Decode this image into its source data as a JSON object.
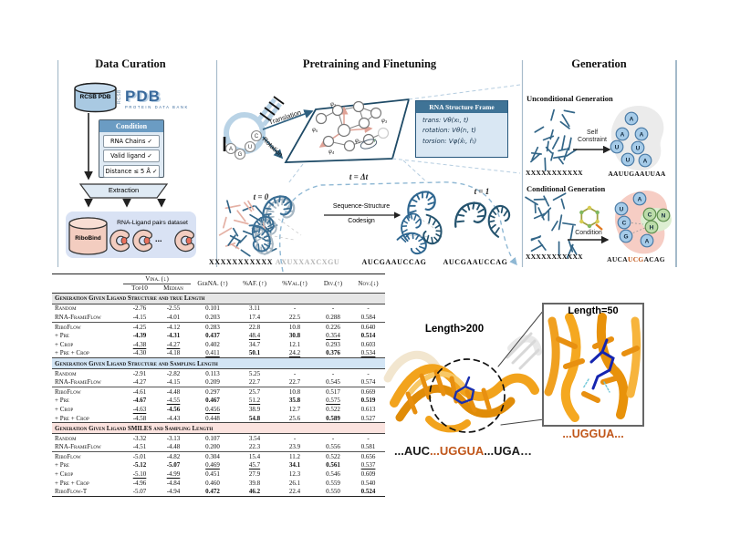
{
  "colors": {
    "accent_orange": "#c0561a",
    "steel_blue": "#2e6080",
    "panel_rule": "#a8bccb",
    "band_gray": "#e6e6e6",
    "band_blue": "#d3e5f5",
    "band_pink": "#fbe3df"
  },
  "panels": {
    "data_curation": {
      "title": "Data Curation",
      "db_label": "RCSB PDB",
      "pdb_logo": {
        "vertical": "RCSB",
        "main": "PDB",
        "sub": "PROTEIN DATA BANK"
      },
      "condition": {
        "header": "Condition",
        "items": [
          "RNA Chains ✓",
          "Valid ligand ✓",
          "Distance ≤ 5 Å ✓"
        ]
      },
      "extraction_label": "Extraction",
      "dataset_db_label": "RiboBind",
      "dataset_caption": "RNA-Ligand pairs dataset",
      "ellipsis": "..."
    },
    "pretraining": {
      "title": "Pretraining and Finetuning",
      "nucleotides": [
        "A",
        "G",
        "U",
        "C"
      ],
      "arrow_translation": "Translation",
      "arrow_rotation": "Rotation",
      "phi_labels": [
        "φ₂",
        "φ₅",
        "φ₃",
        "φ₄",
        "φ₁"
      ],
      "r_label": "r",
      "frame_box": {
        "header": "RNA Structure Frame",
        "lines": [
          "trans: Vθ(xₜ, t)",
          "rotation: Vθ(rₜ, t)",
          "torsion: Vφ(x̂ₜ, r̂ₜ)"
        ]
      },
      "t0_label": "t = 0",
      "tdt_label": "t = Δt",
      "t1_label": "t = 1",
      "codesign_line1": "Sequence-Structure",
      "codesign_line2": "Codesign",
      "seq_x": "XXXXXXXXXXX",
      "seq_noisy": "AXUXXAXCXGU",
      "seq_mid": "AUCGAAUCCAG",
      "seq_final": "AUCGAAUCCAG"
    },
    "generation": {
      "title": "Generation",
      "uncond_heading": "Unconditional Generation",
      "cond_heading": "Conditional Generation",
      "self_line1": "Self",
      "self_line2": "Constraint",
      "condition_label": "Condition",
      "uncond_input": "XXXXXXXXXXX",
      "uncond_output": "AAUUGAAUUAA",
      "cond_input": "XXXXXXXXXXX",
      "uncond_blob_letters": [
        "A",
        "A",
        "A",
        "U",
        "U",
        "U",
        "A"
      ],
      "cond_blob_letters": [
        {
          "l": "A",
          "g": false
        },
        {
          "l": "U",
          "g": false
        },
        {
          "l": "C",
          "g": true
        },
        {
          "l": "N",
          "g": true
        },
        {
          "l": "C",
          "g": false
        },
        {
          "l": "H",
          "g": true
        },
        {
          "l": "G",
          "g": false
        },
        {
          "l": "A",
          "g": false
        }
      ],
      "cond_output_parts": [
        {
          "t": "AUCA",
          "c": "#1a1a1a"
        },
        {
          "t": "UCG",
          "c": "#c0561a"
        },
        {
          "t": "ACAG",
          "c": "#1a1a1a"
        }
      ]
    }
  },
  "table": {
    "header": {
      "vina": "Vina. (↓)",
      "top10": "Top10",
      "median": "Median",
      "cols": [
        "GerNA. (↑)",
        "%AF. (↑)",
        "%Val.(↑)",
        "Div.(↑)",
        "Nov.(↓)"
      ]
    },
    "sections": [
      {
        "title": "Generation Given Ligand Structure and true Length",
        "bg": "#e6e6e6",
        "groups": [
          [
            {
              "name": "Random",
              "vals": [
                [
                  "-2.76",
                  ""
                ],
                [
                  "-2.55",
                  ""
                ],
                [
                  "0.101",
                  ""
                ],
                [
                  "3.11",
                  ""
                ],
                [
                  "-",
                  ""
                ],
                [
                  "-",
                  ""
                ],
                [
                  "-",
                  ""
                ]
              ]
            },
            {
              "name": "RNA-FrameFlow",
              "vals": [
                [
                  "-4.15",
                  ""
                ],
                [
                  "-4.01",
                  ""
                ],
                [
                  "0.203",
                  ""
                ],
                [
                  "17.4",
                  ""
                ],
                [
                  "22.5",
                  ""
                ],
                [
                  "0.288",
                  ""
                ],
                [
                  "0.584",
                  ""
                ]
              ]
            }
          ],
          [
            {
              "name": "RiboFlow",
              "vals": [
                [
                  "-4.25",
                  ""
                ],
                [
                  "-4.12",
                  ""
                ],
                [
                  "0.283",
                  ""
                ],
                [
                  "22.8",
                  ""
                ],
                [
                  "10.8",
                  ""
                ],
                [
                  "0.226",
                  ""
                ],
                [
                  "0.640",
                  ""
                ]
              ]
            },
            {
              "name": "+ Pre",
              "vals": [
                [
                  "-4.39",
                  "b"
                ],
                [
                  "-4.31",
                  "b"
                ],
                [
                  "0.437",
                  "b"
                ],
                [
                  "48.4",
                  "u"
                ],
                [
                  "30.8",
                  "b"
                ],
                [
                  "0.354",
                  "u"
                ],
                [
                  "0.514",
                  "b"
                ]
              ]
            },
            {
              "name": "+ Crop",
              "vals": [
                [
                  "-4.38",
                  "u"
                ],
                [
                  "-4.27",
                  "u"
                ],
                [
                  "0.402",
                  ""
                ],
                [
                  "34.7",
                  ""
                ],
                [
                  "12.1",
                  ""
                ],
                [
                  "0.293",
                  ""
                ],
                [
                  "0.603",
                  ""
                ]
              ]
            },
            {
              "name": "+ Pre + Crop",
              "vals": [
                [
                  "-4.30",
                  ""
                ],
                [
                  "-4.18",
                  ""
                ],
                [
                  "0.411",
                  "u"
                ],
                [
                  "50.1",
                  "b"
                ],
                [
                  "24.2",
                  "u"
                ],
                [
                  "0.376",
                  "b"
                ],
                [
                  "0.534",
                  "u"
                ]
              ]
            }
          ]
        ]
      },
      {
        "title": "Generation Given Ligand Structure and Sampling Length",
        "bg": "#d3e5f5",
        "groups": [
          [
            {
              "name": "Random",
              "vals": [
                [
                  "-2.91",
                  ""
                ],
                [
                  "-2.82",
                  ""
                ],
                [
                  "0.113",
                  ""
                ],
                [
                  "5.25",
                  ""
                ],
                [
                  "-",
                  ""
                ],
                [
                  "-",
                  ""
                ],
                [
                  "-",
                  ""
                ]
              ]
            },
            {
              "name": "RNA-FrameFlow",
              "vals": [
                [
                  "-4.27",
                  ""
                ],
                [
                  "-4.15",
                  ""
                ],
                [
                  "0.209",
                  ""
                ],
                [
                  "22.7",
                  ""
                ],
                [
                  "22.7",
                  ""
                ],
                [
                  "0.545",
                  ""
                ],
                [
                  "0.574",
                  ""
                ]
              ]
            }
          ],
          [
            {
              "name": "RiboFlow",
              "vals": [
                [
                  "-4.61",
                  ""
                ],
                [
                  "-4.48",
                  ""
                ],
                [
                  "0.297",
                  ""
                ],
                [
                  "25.7",
                  ""
                ],
                [
                  "10.8",
                  ""
                ],
                [
                  "0.517",
                  ""
                ],
                [
                  "0.669",
                  ""
                ]
              ]
            },
            {
              "name": "+ Pre",
              "vals": [
                [
                  "-4.67",
                  "b"
                ],
                [
                  "-4.55",
                  "u"
                ],
                [
                  "0.467",
                  "b"
                ],
                [
                  "51.2",
                  "u"
                ],
                [
                  "35.8",
                  "b"
                ],
                [
                  "0.575",
                  "u"
                ],
                [
                  "0.519",
                  "b"
                ]
              ]
            },
            {
              "name": "+ Crop",
              "vals": [
                [
                  "-4.63",
                  "u"
                ],
                [
                  "-4.56",
                  "b"
                ],
                [
                  "0.456",
                  "u"
                ],
                [
                  "38.9",
                  ""
                ],
                [
                  "12.7",
                  ""
                ],
                [
                  "0.522",
                  ""
                ],
                [
                  "0.613",
                  ""
                ]
              ]
            },
            {
              "name": "+ Pre + Crop",
              "vals": [
                [
                  "-4.58",
                  "u"
                ],
                [
                  "-4.43",
                  ""
                ],
                [
                  "0.448",
                  ""
                ],
                [
                  "54.8",
                  "b"
                ],
                [
                  "25.6",
                  "u"
                ],
                [
                  "0.589",
                  "b"
                ],
                [
                  "0.527",
                  "u"
                ]
              ]
            }
          ]
        ]
      },
      {
        "title": "Generation Given Ligand SMILES and Sampling Length",
        "bg": "#fbe3df",
        "groups": [
          [
            {
              "name": "Random",
              "vals": [
                [
                  "-3.32",
                  ""
                ],
                [
                  "-3.13",
                  ""
                ],
                [
                  "0.107",
                  ""
                ],
                [
                  "3.54",
                  ""
                ],
                [
                  "-",
                  ""
                ],
                [
                  "-",
                  ""
                ],
                [
                  "-",
                  ""
                ]
              ]
            },
            {
              "name": "RNA-FrameFlow",
              "vals": [
                [
                  "-4.51",
                  ""
                ],
                [
                  "-4.48",
                  ""
                ],
                [
                  "0.200",
                  ""
                ],
                [
                  "22.3",
                  ""
                ],
                [
                  "23.9",
                  ""
                ],
                [
                  "0.556",
                  ""
                ],
                [
                  "0.581",
                  ""
                ]
              ]
            }
          ],
          [
            {
              "name": "RiboFlow",
              "vals": [
                [
                  "-5.01",
                  ""
                ],
                [
                  "-4.82",
                  ""
                ],
                [
                  "0.304",
                  ""
                ],
                [
                  "15.4",
                  ""
                ],
                [
                  "11.2",
                  ""
                ],
                [
                  "0.522",
                  ""
                ],
                [
                  "0.656",
                  ""
                ]
              ]
            },
            {
              "name": "+ Pre",
              "vals": [
                [
                  "-5.12",
                  "b"
                ],
                [
                  "-5.07",
                  "b"
                ],
                [
                  "0.469",
                  "u"
                ],
                [
                  "45.7",
                  "u"
                ],
                [
                  "34.1",
                  "b"
                ],
                [
                  "0.561",
                  "b"
                ],
                [
                  "0.537",
                  "u"
                ]
              ]
            },
            {
              "name": "+ Crop",
              "vals": [
                [
                  "-5.10",
                  "u"
                ],
                [
                  "-4.99",
                  "u"
                ],
                [
                  "0.451",
                  ""
                ],
                [
                  "27.9",
                  ""
                ],
                [
                  "12.3",
                  ""
                ],
                [
                  "0.546",
                  ""
                ],
                [
                  "0.609",
                  ""
                ]
              ]
            },
            {
              "name": "+ Pre + Crop",
              "vals": [
                [
                  "-4.96",
                  ""
                ],
                [
                  "-4.84",
                  ""
                ],
                [
                  "0.460",
                  ""
                ],
                [
                  "39.8",
                  ""
                ],
                [
                  "26.1",
                  "u"
                ],
                [
                  "0.559",
                  "u"
                ],
                [
                  "0.540",
                  ""
                ]
              ]
            },
            {
              "name": "RiboFlow-T",
              "vals": [
                [
                  "-5.07",
                  ""
                ],
                [
                  "-4.94",
                  ""
                ],
                [
                  "0.472",
                  "b"
                ],
                [
                  "46.2",
                  "b"
                ],
                [
                  "22.4",
                  ""
                ],
                [
                  "0.550",
                  ""
                ],
                [
                  "0.524",
                  "b"
                ]
              ]
            }
          ]
        ]
      }
    ]
  },
  "illustration": {
    "big_label": "Length>200",
    "zoom_label": "Length=50",
    "zoom_seq": "...UGGUA...",
    "seq_parts": [
      {
        "t": "...AUC",
        "c": "#1a1a1a"
      },
      {
        "t": "...UGGUA",
        "c": "#c0561a"
      },
      {
        "t": "...UGA…",
        "c": "#1a1a1a"
      }
    ]
  }
}
